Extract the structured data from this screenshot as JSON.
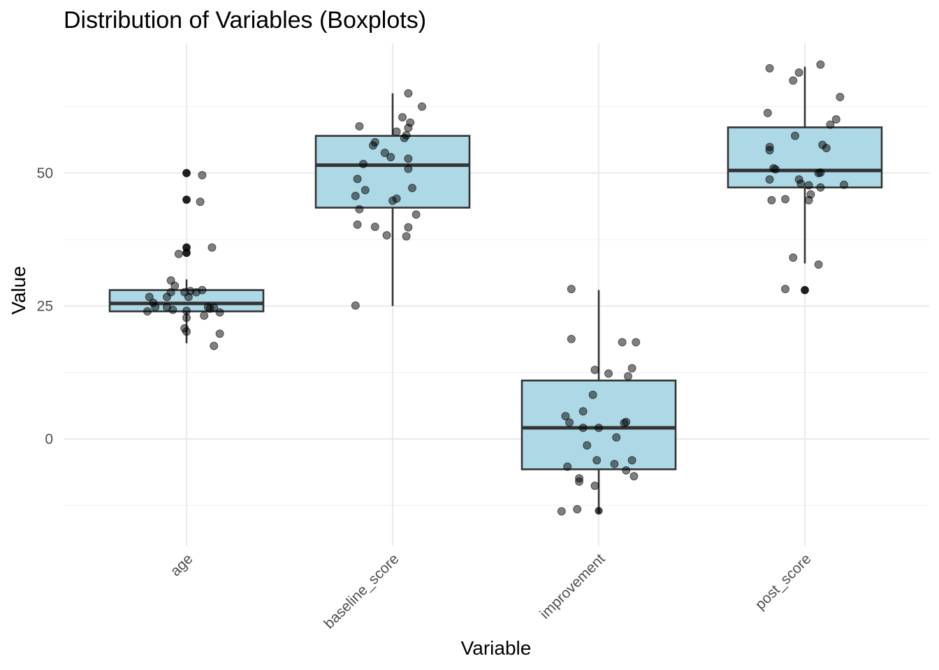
{
  "chart_data": {
    "type": "boxplot",
    "title": "Distribution of Variables (Boxplots)",
    "xlabel": "Variable",
    "ylabel": "Value",
    "ylim": [
      -17,
      75
    ],
    "y_ticks": [
      0,
      25,
      50
    ],
    "grid": true,
    "colors": {
      "box_fill": "#add8e6",
      "box_stroke": "#333333",
      "median_stroke": "#333333",
      "point_fill": "#000000",
      "grid": "#ebebeb"
    },
    "categories": [
      "age",
      "baseline_score",
      "improvement",
      "post_score"
    ],
    "series": [
      {
        "name": "age",
        "box": {
          "q1": 24,
          "median": 25.5,
          "q3": 28,
          "whisker_low": 18,
          "whisker_high": 30
        },
        "outliers": [
          50,
          45,
          36,
          35
        ],
        "points": [
          {
            "jitter": 0.0,
            "value": 50
          },
          {
            "jitter": 0.08,
            "value": 49.6
          },
          {
            "jitter": 0.0,
            "value": 45
          },
          {
            "jitter": 0.07,
            "value": 44.6
          },
          {
            "jitter": 0.0,
            "value": 36
          },
          {
            "jitter": 0.13,
            "value": 36
          },
          {
            "jitter": 0.0,
            "value": 35
          },
          {
            "jitter": -0.04,
            "value": 34.8
          },
          {
            "jitter": -0.08,
            "value": 29.8
          },
          {
            "jitter": -0.06,
            "value": 28.8
          },
          {
            "jitter": 0.08,
            "value": 28
          },
          {
            "jitter": 0.02,
            "value": 27.8
          },
          {
            "jitter": 0.05,
            "value": 27.6
          },
          {
            "jitter": -0.08,
            "value": 27.6
          },
          {
            "jitter": -0.01,
            "value": 27.6
          },
          {
            "jitter": -0.19,
            "value": 26.7
          },
          {
            "jitter": -0.1,
            "value": 26.7
          },
          {
            "jitter": 0.01,
            "value": 26.7
          },
          {
            "jitter": -0.17,
            "value": 25.6
          },
          {
            "jitter": -0.16,
            "value": 24.8
          },
          {
            "jitter": -0.1,
            "value": 24.8
          },
          {
            "jitter": 0.11,
            "value": 24.8
          },
          {
            "jitter": 0.14,
            "value": 24.7
          },
          {
            "jitter": 0.12,
            "value": 24.5
          },
          {
            "jitter": -0.07,
            "value": 24.3
          },
          {
            "jitter": 0.0,
            "value": 24.1
          },
          {
            "jitter": -0.2,
            "value": 24.0
          },
          {
            "jitter": 0.17,
            "value": 23.8
          },
          {
            "jitter": 0.09,
            "value": 23.2
          },
          {
            "jitter": 0.0,
            "value": 22.8
          },
          {
            "jitter": -0.01,
            "value": 20.8
          },
          {
            "jitter": 0.0,
            "value": 20.2
          },
          {
            "jitter": 0.17,
            "value": 19.8
          },
          {
            "jitter": 0.14,
            "value": 17.5
          }
        ]
      },
      {
        "name": "baseline_score",
        "box": {
          "q1": 43.5,
          "median": 51.5,
          "q3": 57,
          "whisker_low": 25,
          "whisker_high": 65
        },
        "outliers": [],
        "points": [
          {
            "jitter": 0.08,
            "value": 65
          },
          {
            "jitter": 0.15,
            "value": 62.5
          },
          {
            "jitter": 0.05,
            "value": 60.5
          },
          {
            "jitter": 0.09,
            "value": 59.5
          },
          {
            "jitter": 0.08,
            "value": 58.5
          },
          {
            "jitter": -0.17,
            "value": 58.8
          },
          {
            "jitter": 0.02,
            "value": 57.8
          },
          {
            "jitter": 0.07,
            "value": 57.1
          },
          {
            "jitter": 0.06,
            "value": 56.6
          },
          {
            "jitter": -0.09,
            "value": 55.8
          },
          {
            "jitter": -0.1,
            "value": 55.2
          },
          {
            "jitter": -0.04,
            "value": 53.8
          },
          {
            "jitter": -0.01,
            "value": 53.0
          },
          {
            "jitter": 0.08,
            "value": 52.7
          },
          {
            "jitter": -0.15,
            "value": 51.7
          },
          {
            "jitter": 0.08,
            "value": 50.8
          },
          {
            "jitter": -0.18,
            "value": 48.9
          },
          {
            "jitter": 0.1,
            "value": 47.2
          },
          {
            "jitter": -0.14,
            "value": 46.8
          },
          {
            "jitter": -0.19,
            "value": 45.7
          },
          {
            "jitter": 0.02,
            "value": 45.2
          },
          {
            "jitter": 0.0,
            "value": 44.8
          },
          {
            "jitter": -0.17,
            "value": 43.2
          },
          {
            "jitter": 0.12,
            "value": 42.2
          },
          {
            "jitter": -0.18,
            "value": 40.3
          },
          {
            "jitter": -0.09,
            "value": 39.9
          },
          {
            "jitter": 0.08,
            "value": 39.8
          },
          {
            "jitter": -0.03,
            "value": 38.3
          },
          {
            "jitter": 0.07,
            "value": 38.1
          },
          {
            "jitter": -0.19,
            "value": 25.1
          }
        ]
      },
      {
        "name": "improvement",
        "box": {
          "q1": -5.7,
          "median": 2.1,
          "q3": 11,
          "whisker_low": -14,
          "whisker_high": 28
        },
        "outliers": [
          -13.5
        ],
        "points": [
          {
            "jitter": -0.14,
            "value": 28.2
          },
          {
            "jitter": -0.14,
            "value": 18.8
          },
          {
            "jitter": 0.12,
            "value": 18.2
          },
          {
            "jitter": 0.19,
            "value": 18.2
          },
          {
            "jitter": 0.17,
            "value": 13.3
          },
          {
            "jitter": -0.02,
            "value": 13.0
          },
          {
            "jitter": 0.05,
            "value": 12.3
          },
          {
            "jitter": 0.15,
            "value": 11.8
          },
          {
            "jitter": -0.03,
            "value": 8.3
          },
          {
            "jitter": -0.08,
            "value": 5.2
          },
          {
            "jitter": -0.17,
            "value": 4.3
          },
          {
            "jitter": 0.14,
            "value": 3.2
          },
          {
            "jitter": -0.15,
            "value": 3.1
          },
          {
            "jitter": 0.13,
            "value": 3.0
          },
          {
            "jitter": -0.08,
            "value": 2.1
          },
          {
            "jitter": 0.0,
            "value": 2.1
          },
          {
            "jitter": 0.09,
            "value": 0.3
          },
          {
            "jitter": -0.06,
            "value": -1.2
          },
          {
            "jitter": -0.01,
            "value": -4.0
          },
          {
            "jitter": 0.17,
            "value": -4.0
          },
          {
            "jitter": 0.08,
            "value": -4.7
          },
          {
            "jitter": -0.16,
            "value": -5.2
          },
          {
            "jitter": 0.14,
            "value": -5.9
          },
          {
            "jitter": -0.1,
            "value": -7.4
          },
          {
            "jitter": 0.18,
            "value": -7.0
          },
          {
            "jitter": -0.1,
            "value": -8.0
          },
          {
            "jitter": -0.02,
            "value": -8.8
          },
          {
            "jitter": -0.11,
            "value": -13.2
          },
          {
            "jitter": -0.19,
            "value": -13.6
          }
        ]
      },
      {
        "name": "post_score",
        "box": {
          "q1": 47.3,
          "median": 50.5,
          "q3": 58.6,
          "whisker_low": 33,
          "whisker_high": 70
        },
        "outliers": [
          28
        ],
        "points": [
          {
            "jitter": 0.08,
            "value": 70.4
          },
          {
            "jitter": -0.18,
            "value": 69.7
          },
          {
            "jitter": -0.03,
            "value": 68.9
          },
          {
            "jitter": -0.06,
            "value": 67.4
          },
          {
            "jitter": 0.18,
            "value": 64.3
          },
          {
            "jitter": -0.19,
            "value": 61.3
          },
          {
            "jitter": 0.16,
            "value": 60.1
          },
          {
            "jitter": 0.13,
            "value": 59.1
          },
          {
            "jitter": -0.05,
            "value": 57.0
          },
          {
            "jitter": 0.09,
            "value": 55.3
          },
          {
            "jitter": -0.18,
            "value": 54.9
          },
          {
            "jitter": 0.11,
            "value": 54.7
          },
          {
            "jitter": -0.18,
            "value": 54.3
          },
          {
            "jitter": -0.16,
            "value": 50.9
          },
          {
            "jitter": -0.15,
            "value": 50.7
          },
          {
            "jitter": 0.08,
            "value": 50.1
          },
          {
            "jitter": 0.07,
            "value": 50.0
          },
          {
            "jitter": -0.18,
            "value": 48.8
          },
          {
            "jitter": -0.03,
            "value": 48.8
          },
          {
            "jitter": -0.02,
            "value": 48.0
          },
          {
            "jitter": 0.02,
            "value": 47.7
          },
          {
            "jitter": 0.2,
            "value": 47.8
          },
          {
            "jitter": 0.08,
            "value": 47.3
          },
          {
            "jitter": 0.03,
            "value": 46.0
          },
          {
            "jitter": 0.02,
            "value": 44.9
          },
          {
            "jitter": -0.17,
            "value": 44.9
          },
          {
            "jitter": -0.1,
            "value": 45.1
          },
          {
            "jitter": -0.06,
            "value": 34.1
          },
          {
            "jitter": 0.07,
            "value": 32.8
          },
          {
            "jitter": -0.1,
            "value": 28.2
          },
          {
            "jitter": 0.0,
            "value": 28.0
          }
        ]
      }
    ]
  }
}
